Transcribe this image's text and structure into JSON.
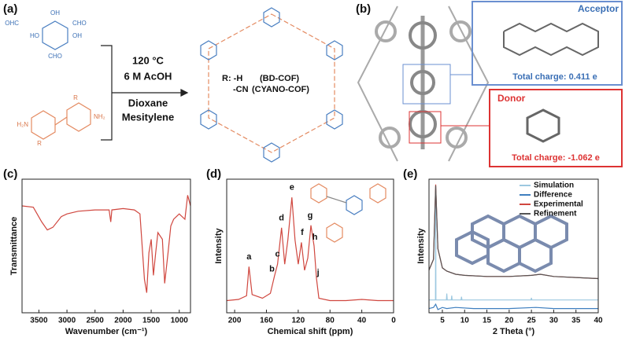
{
  "panel_labels": [
    "(a)",
    "(b)",
    "(c)",
    "(d)",
    "(e)"
  ],
  "scheme": {
    "reagent_labels": [
      "OHC",
      "OH",
      "CHO",
      "HO",
      "OH",
      "CHO",
      "H₂N",
      "NH₂",
      "R",
      "R"
    ],
    "conditions": [
      "120 °C",
      "6 M AcOH",
      "Dioxane",
      "Mesitylene"
    ],
    "substituents": [
      "R: -H",
      "(BD-COF)",
      "-CN",
      "(CYANO-COF)"
    ]
  },
  "structure": {
    "acceptor": {
      "title": "Acceptor",
      "charge": "Total charge: 0.411 e"
    },
    "donor": {
      "title": "Donor",
      "charge": "Total charge: -1.062 e"
    }
  },
  "chart_data": [
    {
      "type": "line",
      "xlabel": "Wavenumber (cm⁻¹)",
      "ylabel": "Transmittance",
      "xlim": [
        3800,
        800
      ],
      "ylim": [
        0,
        100
      ],
      "xticks": [
        3500,
        3000,
        2500,
        2000,
        1500,
        1000
      ],
      "series": [
        {
          "color": "#d0473f",
          "x": [
            3800,
            3600,
            3450,
            3350,
            3250,
            3100,
            3000,
            2800,
            2500,
            2250,
            2220,
            2200,
            2000,
            1800,
            1700,
            1620,
            1580,
            1540,
            1500,
            1460,
            1420,
            1380,
            1300,
            1260,
            1200,
            1150,
            1100,
            1000,
            900,
            850,
            800
          ],
          "values": [
            80,
            79,
            68,
            62,
            64,
            72,
            74,
            76,
            77,
            77,
            68,
            77,
            78,
            77,
            74,
            25,
            15,
            45,
            55,
            28,
            45,
            60,
            55,
            22,
            45,
            65,
            70,
            74,
            70,
            88,
            80
          ]
        }
      ]
    },
    {
      "type": "line",
      "xlabel": "Chemical shift (ppm)",
      "ylabel": "Intensity",
      "xlim": [
        210,
        0
      ],
      "ylim": [
        0,
        110
      ],
      "xticks": [
        200,
        160,
        120,
        80,
        40,
        0
      ],
      "series": [
        {
          "color": "#d0473f",
          "x": [
            210,
            195,
            185,
            182,
            178,
            165,
            155,
            150,
            146,
            141,
            137,
            133,
            128,
            124,
            120,
            116,
            112,
            108,
            104,
            100,
            97,
            94,
            80,
            60,
            40,
            20,
            0
          ],
          "values": [
            10,
            11,
            14,
            38,
            15,
            12,
            16,
            30,
            40,
            70,
            40,
            60,
            95,
            60,
            40,
            58,
            35,
            45,
            72,
            55,
            28,
            12,
            10,
            10,
            11,
            10,
            10
          ]
        }
      ],
      "annotations": [
        {
          "text": "a",
          "x": 182,
          "y": 46
        },
        {
          "text": "b",
          "x": 153,
          "y": 36
        },
        {
          "text": "c",
          "x": 146,
          "y": 48
        },
        {
          "text": "d",
          "x": 141,
          "y": 78
        },
        {
          "text": "e",
          "x": 128,
          "y": 103
        },
        {
          "text": "f",
          "x": 115,
          "y": 66
        },
        {
          "text": "g",
          "x": 105,
          "y": 80
        },
        {
          "text": "h",
          "x": 99,
          "y": 62
        },
        {
          "text": "j",
          "x": 95,
          "y": 33
        }
      ]
    },
    {
      "type": "line",
      "xlabel": "2 Theta (°)",
      "ylabel": "Intensity",
      "xlim": [
        2,
        40
      ],
      "ylim": [
        -20,
        105
      ],
      "xticks": [
        5,
        10,
        15,
        20,
        25,
        30,
        35,
        40
      ],
      "legend": "upper right",
      "series": [
        {
          "name": "Simulation",
          "color": "#9cc8e0",
          "x": [
            2,
            3.45,
            3.5,
            3.55,
            5.9,
            6,
            6.1,
            7,
            7.1,
            7.2,
            9.2,
            9.3,
            9.4,
            24.9,
            25,
            25.1,
            40
          ],
          "values": [
            -8,
            -8,
            95,
            -8,
            -8,
            -2,
            -8,
            -8,
            -4,
            -8,
            -8,
            -5,
            -8,
            -8,
            -6,
            -8,
            -8
          ]
        },
        {
          "name": "Difference",
          "color": "#3f7fbf",
          "x": [
            2,
            3,
            3.5,
            4,
            5,
            6,
            8,
            12,
            20,
            26,
            30,
            40
          ],
          "values": [
            -16,
            -15,
            -12,
            -17,
            -15,
            -16,
            -15,
            -16,
            -16,
            -15,
            -16,
            -16
          ]
        },
        {
          "name": "Experimental",
          "color": "#d0473f",
          "x": [
            2,
            3,
            3.5,
            4,
            5,
            6,
            8,
            10,
            15,
            20,
            25,
            27,
            30,
            35,
            40
          ],
          "values": [
            20,
            30,
            100,
            40,
            22,
            19,
            16,
            15,
            14,
            14,
            15,
            16,
            14,
            13,
            12
          ]
        },
        {
          "name": "Refinement",
          "color": "#555555",
          "x": [
            2,
            3,
            3.5,
            4,
            5,
            6,
            8,
            10,
            15,
            20,
            25,
            27,
            30,
            35,
            40
          ],
          "values": [
            20,
            30,
            99,
            40,
            22,
            19,
            16,
            15,
            14,
            14,
            15,
            16,
            14,
            13,
            12
          ]
        }
      ]
    }
  ]
}
